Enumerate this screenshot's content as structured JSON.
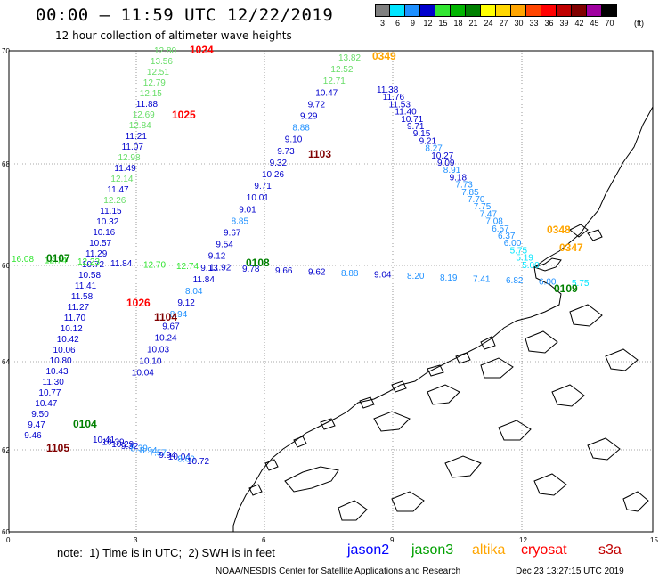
{
  "header": {
    "title": "00:00 – 11:59 UTC 12/22/2019",
    "subtitle": "12 hour collection of altimeter wave heights"
  },
  "legend": {
    "unit": "(ft)",
    "steps": [
      {
        "label": "3",
        "color": "#808080"
      },
      {
        "label": "6",
        "color": "#00e5ff"
      },
      {
        "label": "9",
        "color": "#1e90ff"
      },
      {
        "label": "12",
        "color": "#0000cd"
      },
      {
        "label": "15",
        "color": "#32e632"
      },
      {
        "label": "18",
        "color": "#00b400"
      },
      {
        "label": "21",
        "color": "#008000"
      },
      {
        "label": "24",
        "color": "#ffff00"
      },
      {
        "label": "27",
        "color": "#ffd700"
      },
      {
        "label": "30",
        "color": "#ffa500"
      },
      {
        "label": "33",
        "color": "#ff4500"
      },
      {
        "label": "36",
        "color": "#ff0000"
      },
      {
        "label": "39",
        "color": "#c00000"
      },
      {
        "label": "42",
        "color": "#800000"
      },
      {
        "label": "45",
        "color": "#a000a0"
      },
      {
        "label": "70",
        "color": "#000000"
      }
    ]
  },
  "axes": {
    "lat_labels": [
      "70",
      "68",
      "66",
      "64",
      "62",
      "60"
    ],
    "lon_labels": [
      "0",
      "3",
      "6",
      "9",
      "12",
      "15"
    ]
  },
  "tracks": {
    "track_1024": [
      {
        "v": "12.80",
        "c": "#66dd66"
      },
      {
        "v": "13.56",
        "c": "#66dd66"
      },
      {
        "v": "12.51",
        "c": "#66dd66"
      },
      {
        "v": "12.79",
        "c": "#66dd66"
      },
      {
        "v": "12.15",
        "c": "#66dd66"
      },
      {
        "v": "11.88",
        "c": "#0000cd"
      },
      {
        "v": "12.69",
        "c": "#66dd66"
      },
      {
        "v": "12.84",
        "c": "#66dd66"
      },
      {
        "v": "11.21",
        "c": "#0000cd"
      },
      {
        "v": "11.07",
        "c": "#0000cd"
      },
      {
        "v": "12.98",
        "c": "#66dd66"
      },
      {
        "v": "11.49",
        "c": "#0000cd"
      },
      {
        "v": "12.14",
        "c": "#66dd66"
      },
      {
        "v": "11.47",
        "c": "#0000cd"
      },
      {
        "v": "12.26",
        "c": "#66dd66"
      },
      {
        "v": "11.15",
        "c": "#0000cd"
      },
      {
        "v": "10.32",
        "c": "#0000cd"
      },
      {
        "v": "10.16",
        "c": "#0000cd"
      },
      {
        "v": "10.57",
        "c": "#0000cd"
      },
      {
        "v": "11.29",
        "c": "#0000cd"
      },
      {
        "v": "10.72",
        "c": "#0000cd"
      },
      {
        "v": "10.58",
        "c": "#0000cd"
      },
      {
        "v": "11.41",
        "c": "#0000cd"
      },
      {
        "v": "11.58",
        "c": "#0000cd"
      },
      {
        "v": "11.27",
        "c": "#0000cd"
      },
      {
        "v": "11.70",
        "c": "#0000cd"
      },
      {
        "v": "10.12",
        "c": "#0000cd"
      },
      {
        "v": "10.42",
        "c": "#0000cd"
      },
      {
        "v": "10.06",
        "c": "#0000cd"
      },
      {
        "v": "10.80",
        "c": "#0000cd"
      },
      {
        "v": "10.43",
        "c": "#0000cd"
      },
      {
        "v": "11.30",
        "c": "#0000cd"
      },
      {
        "v": "10.77",
        "c": "#0000cd"
      },
      {
        "v": "10.47",
        "c": "#0000cd"
      },
      {
        "v": "9.50",
        "c": "#0000cd"
      },
      {
        "v": "9.47",
        "c": "#0000cd"
      },
      {
        "v": "9.46",
        "c": "#0000cd"
      }
    ],
    "track_1103": [
      {
        "v": "13.82",
        "c": "#66dd66"
      },
      {
        "v": "12.52",
        "c": "#66dd66"
      },
      {
        "v": "12.71",
        "c": "#66dd66"
      },
      {
        "v": "10.47",
        "c": "#0000cd"
      },
      {
        "v": "9.72",
        "c": "#0000cd"
      },
      {
        "v": "9.29",
        "c": "#0000cd"
      },
      {
        "v": "8.88",
        "c": "#1e90ff"
      },
      {
        "v": "9.10",
        "c": "#0000cd"
      },
      {
        "v": "9.73",
        "c": "#0000cd"
      },
      {
        "v": "9.32",
        "c": "#0000cd"
      },
      {
        "v": "10.26",
        "c": "#0000cd"
      },
      {
        "v": "9.71",
        "c": "#0000cd"
      },
      {
        "v": "10.01",
        "c": "#0000cd"
      },
      {
        "v": "9.01",
        "c": "#0000cd"
      },
      {
        "v": "8.85",
        "c": "#1e90ff"
      },
      {
        "v": "9.67",
        "c": "#0000cd"
      },
      {
        "v": "9.54",
        "c": "#0000cd"
      },
      {
        "v": "9.12",
        "c": "#0000cd"
      },
      {
        "v": "9.13",
        "c": "#0000cd"
      },
      {
        "v": "11.84",
        "c": "#0000cd"
      },
      {
        "v": "8.04",
        "c": "#1e90ff"
      },
      {
        "v": "9.12",
        "c": "#0000cd"
      },
      {
        "v": "8.94",
        "c": "#1e90ff"
      },
      {
        "v": "9.67",
        "c": "#0000cd"
      },
      {
        "v": "10.24",
        "c": "#0000cd"
      },
      {
        "v": "10.03",
        "c": "#0000cd"
      },
      {
        "v": "10.10",
        "c": "#0000cd"
      },
      {
        "v": "10.04",
        "c": "#0000cd"
      }
    ],
    "track_east": [
      {
        "v": "11.38",
        "c": "#0000cd"
      },
      {
        "v": "11.76",
        "c": "#0000cd"
      },
      {
        "v": "11.53",
        "c": "#0000cd"
      },
      {
        "v": "11.40",
        "c": "#0000cd"
      },
      {
        "v": "10.71",
        "c": "#0000cd"
      },
      {
        "v": "9.71",
        "c": "#0000cd"
      },
      {
        "v": "9.15",
        "c": "#0000cd"
      },
      {
        "v": "9.21",
        "c": "#0000cd"
      },
      {
        "v": "8.27",
        "c": "#1e90ff"
      },
      {
        "v": "10.27",
        "c": "#0000cd"
      },
      {
        "v": "9.09",
        "c": "#0000cd"
      },
      {
        "v": "8.91",
        "c": "#1e90ff"
      },
      {
        "v": "9.18",
        "c": "#0000cd"
      },
      {
        "v": "7.73",
        "c": "#1e90ff"
      },
      {
        "v": "7.85",
        "c": "#1e90ff"
      },
      {
        "v": "7.70",
        "c": "#1e90ff"
      },
      {
        "v": "7.75",
        "c": "#1e90ff"
      },
      {
        "v": "7.47",
        "c": "#1e90ff"
      },
      {
        "v": "7.08",
        "c": "#1e90ff"
      },
      {
        "v": "6.57",
        "c": "#1e90ff"
      },
      {
        "v": "6.37",
        "c": "#1e90ff"
      },
      {
        "v": "6.00",
        "c": "#1e90ff"
      },
      {
        "v": "5.75",
        "c": "#00e5ff"
      },
      {
        "v": "5.19",
        "c": "#00e5ff"
      },
      {
        "v": "5.00",
        "c": "#00e5ff"
      }
    ],
    "track_66n": [
      {
        "v": "16.08",
        "c": "#32e632"
      },
      {
        "v": "12.74",
        "c": "#32e632"
      },
      {
        "v": "12.23",
        "c": "#32e632"
      },
      {
        "v": "11.84",
        "c": "#0000cd"
      },
      {
        "v": "12.70",
        "c": "#32e632"
      },
      {
        "v": "12.74",
        "c": "#32e632"
      },
      {
        "v": "11.92",
        "c": "#0000cd"
      },
      {
        "v": "9.78",
        "c": "#0000cd"
      },
      {
        "v": "9.66",
        "c": "#0000cd"
      },
      {
        "v": "9.62",
        "c": "#0000cd"
      },
      {
        "v": "8.88",
        "c": "#1e90ff"
      },
      {
        "v": "9.04",
        "c": "#0000cd"
      },
      {
        "v": "8.20",
        "c": "#1e90ff"
      },
      {
        "v": "8.19",
        "c": "#1e90ff"
      },
      {
        "v": "7.41",
        "c": "#1e90ff"
      },
      {
        "v": "6.82",
        "c": "#1e90ff"
      },
      {
        "v": "6.00",
        "c": "#1e90ff"
      },
      {
        "v": "5.75",
        "c": "#00e5ff"
      }
    ],
    "track_south": [
      {
        "v": "10.41",
        "c": "#0000cd"
      },
      {
        "v": "10.39",
        "c": "#0000cd"
      },
      {
        "v": "10.29",
        "c": "#0000cd"
      },
      {
        "v": "9.32",
        "c": "#0000cd"
      },
      {
        "v": "8.39",
        "c": "#1e90ff"
      },
      {
        "v": "8.94",
        "c": "#1e90ff"
      },
      {
        "v": "7.57",
        "c": "#1e90ff"
      },
      {
        "v": "9.94",
        "c": "#0000cd"
      },
      {
        "v": "10.04",
        "c": "#0000cd"
      },
      {
        "v": "8.60",
        "c": "#1e90ff"
      },
      {
        "v": "10.72",
        "c": "#0000cd"
      }
    ]
  },
  "pass_labels": [
    {
      "text": "1024",
      "color": "#ff0000"
    },
    {
      "text": "1025",
      "color": "#ff0000"
    },
    {
      "text": "1026",
      "color": "#ff0000"
    },
    {
      "text": "1103",
      "color": "#800000"
    },
    {
      "text": "1104",
      "color": "#800000"
    },
    {
      "text": "1105",
      "color": "#800000"
    },
    {
      "text": "0107",
      "color": "#008000"
    },
    {
      "text": "0108",
      "color": "#008000"
    },
    {
      "text": "0109",
      "color": "#008000"
    },
    {
      "text": "0104",
      "color": "#008000"
    },
    {
      "text": "0349",
      "color": "#ffa500"
    },
    {
      "text": "0348",
      "color": "#ffa500"
    },
    {
      "text": "0347",
      "color": "#ffa500"
    }
  ],
  "footer": {
    "note": "note:  1) Time is in UTC;  2) SWH is in feet",
    "missions": [
      {
        "name": "jason2",
        "color": "#0000ff"
      },
      {
        "name": "jason3",
        "color": "#00a000"
      },
      {
        "name": "altika",
        "color": "#ffa500"
      },
      {
        "name": "cryosat",
        "color": "#ff0000"
      },
      {
        "name": "s3a",
        "color": "#c00000"
      }
    ],
    "credit": "NOAA/NESDIS Center for Satellite Applications and Research",
    "timestamp": "Dec 23 13:27:15 UTC 2019"
  }
}
